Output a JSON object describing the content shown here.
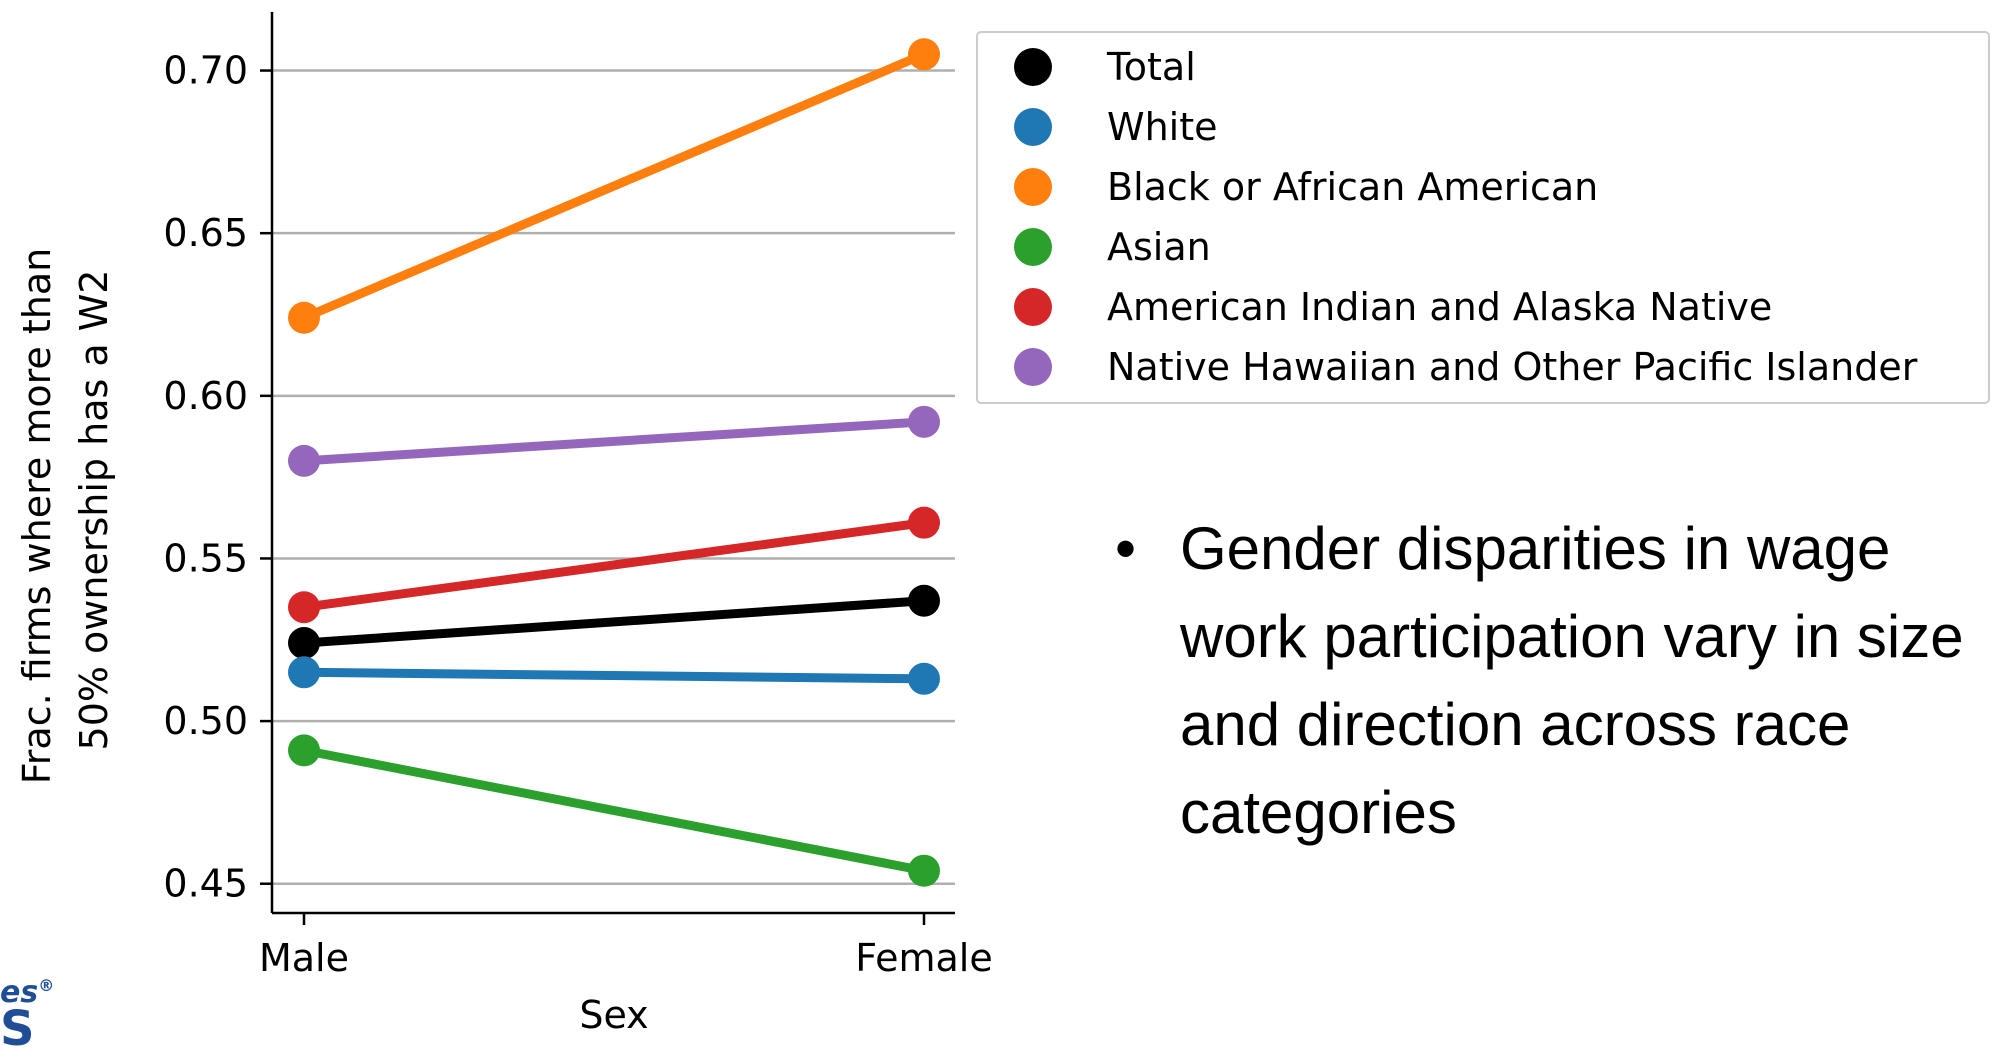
{
  "chart_data": {
    "type": "line",
    "categories": [
      "Male",
      "Female"
    ],
    "xlabel": "Sex",
    "ylabel_lines": [
      "Frac. firms where more than",
      "50% ownership has a W2"
    ],
    "ylim": [
      0.441,
      0.718
    ],
    "yticks": [
      "0.45",
      "0.50",
      "0.55",
      "0.60",
      "0.65",
      "0.70"
    ],
    "grid": "horizontal",
    "legend_position": "upper-right",
    "series": [
      {
        "name": "Total",
        "color": "#000000",
        "values": [
          0.524,
          0.537
        ]
      },
      {
        "name": "White",
        "color": "#1f77b4",
        "values": [
          0.515,
          0.513
        ]
      },
      {
        "name": "Black or African American",
        "color": "#ff7f0e",
        "values": [
          0.624,
          0.705
        ]
      },
      {
        "name": "Asian",
        "color": "#2ca02c",
        "values": [
          0.491,
          0.454
        ]
      },
      {
        "name": "American Indian and Alaska Native",
        "color": "#d62728",
        "values": [
          0.535,
          0.561
        ]
      },
      {
        "name": "Native Hawaiian and Other Pacific Islander",
        "color": "#9467bd",
        "values": [
          0.58,
          0.592
        ]
      }
    ]
  },
  "bullet": {
    "symbol": "•",
    "text": "Gender disparities in wage work participation vary in size and direction across race categories"
  },
  "logo": {
    "line1": "es",
    "registered": "®",
    "line2": "S"
  }
}
